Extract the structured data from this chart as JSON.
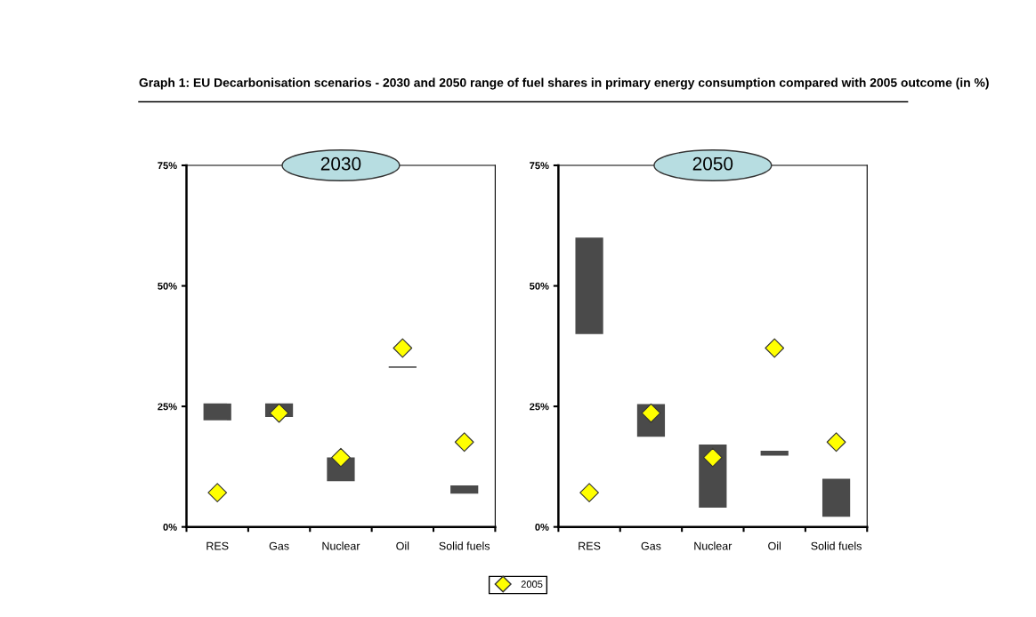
{
  "chart_data": [
    {
      "type": "bar",
      "title": "Graph 1: EU Decarbonisation scenarios - 2030 and 2050 range of fuel shares in primary energy consumption compared with 2005 outcome (in %)",
      "subtitle": "2030",
      "categories": [
        "RES",
        "Gas",
        "Nuclear",
        "Oil",
        "Solid fuels"
      ],
      "series": [
        {
          "color": "#4a4a4a",
          "values": [
            3.5,
            2.8,
            4.9,
            0.3,
            1.7
          ],
          "base": [
            22.1,
            22.8,
            9.5,
            33.0,
            6.9
          ]
        },
        {
          "type": "scatter",
          "name": "2005",
          "color": "#ffff00",
          "values": [
            7.1,
            23.6,
            14.4,
            37.1,
            17.6
          ]
        }
      ],
      "marker": "diamond",
      "ylim": [
        0,
        75
      ],
      "yticks": [
        {
          "value": 0,
          "label": "0%"
        },
        {
          "value": 25,
          "label": "25%"
        },
        {
          "value": 50,
          "label": "50%"
        },
        {
          "value": 75,
          "label": "75%"
        }
      ],
      "legend": "bottom"
    },
    {
      "type": "bar",
      "subtitle": "2050",
      "categories": [
        "RES",
        "Gas",
        "Nuclear",
        "Oil",
        "Solid fuels"
      ],
      "series": [
        {
          "color": "#4a4a4a",
          "values": [
            20.0,
            6.8,
            13.1,
            1.0,
            7.9
          ],
          "base": [
            40.0,
            18.7,
            4.0,
            14.8,
            2.1
          ]
        },
        {
          "type": "scatter",
          "name": "2005",
          "color": "#ffff00",
          "values": [
            7.1,
            23.6,
            14.4,
            37.1,
            17.6
          ]
        }
      ],
      "marker": "diamond",
      "ylim": [
        0,
        75
      ],
      "yticks": [
        {
          "value": 0,
          "label": "0%"
        },
        {
          "value": 25,
          "label": "25%"
        },
        {
          "value": 50,
          "label": "50%"
        },
        {
          "value": 75,
          "label": "75%"
        }
      ],
      "legend": false
    }
  ]
}
